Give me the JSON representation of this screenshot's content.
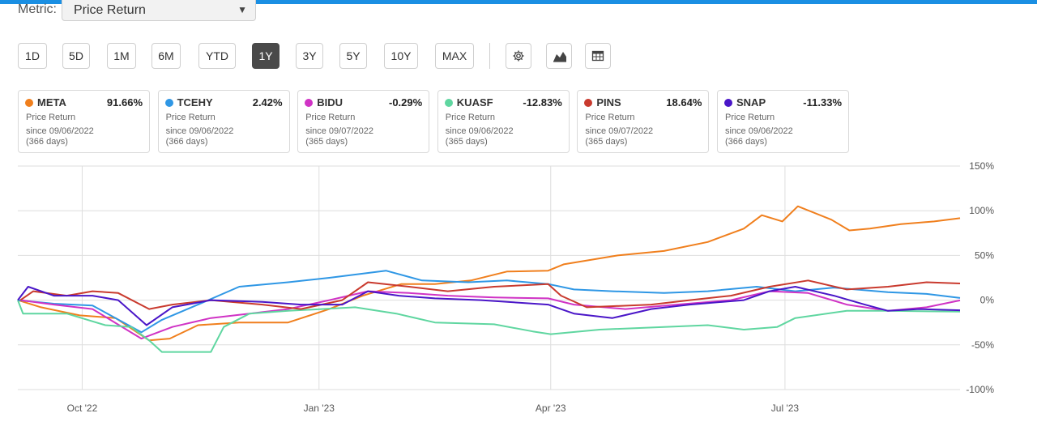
{
  "header": {
    "metric_label": "Metric:",
    "metric_value": "Price Return",
    "caret": "▼"
  },
  "ranges": [
    {
      "label": "1D",
      "active": false
    },
    {
      "label": "5D",
      "active": false
    },
    {
      "label": "1M",
      "active": false
    },
    {
      "label": "6M",
      "active": false
    },
    {
      "label": "YTD",
      "active": false
    },
    {
      "label": "1Y",
      "active": true
    },
    {
      "label": "3Y",
      "active": false
    },
    {
      "label": "5Y",
      "active": false
    },
    {
      "label": "10Y",
      "active": false
    },
    {
      "label": "MAX",
      "active": false
    }
  ],
  "tools": [
    "gear-icon",
    "chart-type-icon",
    "table-icon"
  ],
  "cards": [
    {
      "ticker": "META",
      "pct": "91.66%",
      "metric": "Price Return",
      "since": "since 09/06/2022",
      "days": "(366 days)",
      "color": "#f07f1d"
    },
    {
      "ticker": "TCEHY",
      "pct": "2.42%",
      "metric": "Price Return",
      "since": "since 09/06/2022",
      "days": "(366 days)",
      "color": "#2f97e5"
    },
    {
      "ticker": "BIDU",
      "pct": "-0.29%",
      "metric": "Price Return",
      "since": "since 09/07/2022",
      "days": "(365 days)",
      "color": "#d033c5"
    },
    {
      "ticker": "KUASF",
      "pct": "-12.83%",
      "metric": "Price Return",
      "since": "since 09/06/2022",
      "days": "(365 days)",
      "color": "#5fd6a0"
    },
    {
      "ticker": "PINS",
      "pct": "18.64%",
      "metric": "Price Return",
      "since": "since 09/07/2022",
      "days": "(365 days)",
      "color": "#c93a2e"
    },
    {
      "ticker": "SNAP",
      "pct": "-11.33%",
      "metric": "Price Return",
      "since": "since 09/06/2022",
      "days": "(366 days)",
      "color": "#4a16c8"
    }
  ],
  "chart_data": {
    "type": "line",
    "title": "",
    "xlabel": "",
    "ylabel": "",
    "ylim": [
      -100,
      150
    ],
    "yticks": [
      150,
      100,
      50,
      0,
      -50,
      -100
    ],
    "ytick_labels": [
      "150%",
      "100%",
      "50%",
      "0%",
      "-50%",
      "-100%"
    ],
    "xtick_labels": [
      "Oct '22",
      "Jan '23",
      "Apr '23",
      "Jul '23"
    ],
    "xtick_dates": [
      "2022-10-01",
      "2023-01-01",
      "2023-04-01",
      "2023-07-01"
    ],
    "x_start": "2022-09-06",
    "x_end": "2023-09-07",
    "grid": true,
    "series": [
      {
        "name": "META",
        "color": "#f07f1d",
        "points": [
          [
            "2022-09-06",
            0
          ],
          [
            "2022-09-15",
            -8
          ],
          [
            "2022-09-30",
            -17
          ],
          [
            "2022-10-14",
            -20
          ],
          [
            "2022-10-27",
            -45
          ],
          [
            "2022-11-04",
            -43
          ],
          [
            "2022-11-15",
            -28
          ],
          [
            "2022-12-01",
            -25
          ],
          [
            "2022-12-20",
            -25
          ],
          [
            "2023-01-05",
            -10
          ],
          [
            "2023-01-18",
            5
          ],
          [
            "2023-02-02",
            18
          ],
          [
            "2023-02-15",
            18
          ],
          [
            "2023-03-01",
            22
          ],
          [
            "2023-03-15",
            32
          ],
          [
            "2023-03-31",
            33
          ],
          [
            "2023-04-06",
            40
          ],
          [
            "2023-04-27",
            50
          ],
          [
            "2023-05-15",
            55
          ],
          [
            "2023-06-01",
            65
          ],
          [
            "2023-06-15",
            80
          ],
          [
            "2023-06-22",
            95
          ],
          [
            "2023-06-30",
            88
          ],
          [
            "2023-07-06",
            105
          ],
          [
            "2023-07-19",
            90
          ],
          [
            "2023-07-26",
            78
          ],
          [
            "2023-08-03",
            80
          ],
          [
            "2023-08-15",
            85
          ],
          [
            "2023-08-28",
            88
          ],
          [
            "2023-09-07",
            91.66
          ]
        ]
      },
      {
        "name": "TCEHY",
        "color": "#2f97e5",
        "points": [
          [
            "2022-09-06",
            0
          ],
          [
            "2022-09-20",
            -4
          ],
          [
            "2022-10-05",
            -6
          ],
          [
            "2022-10-24",
            -36
          ],
          [
            "2022-11-01",
            -22
          ],
          [
            "2022-11-15",
            -5
          ],
          [
            "2022-12-01",
            15
          ],
          [
            "2022-12-20",
            20
          ],
          [
            "2023-01-05",
            25
          ],
          [
            "2023-01-27",
            33
          ],
          [
            "2023-02-10",
            22
          ],
          [
            "2023-02-28",
            20
          ],
          [
            "2023-03-15",
            22
          ],
          [
            "2023-03-31",
            18
          ],
          [
            "2023-04-10",
            12
          ],
          [
            "2023-04-25",
            10
          ],
          [
            "2023-05-15",
            8
          ],
          [
            "2023-06-01",
            10
          ],
          [
            "2023-06-20",
            15
          ],
          [
            "2023-07-05",
            10
          ],
          [
            "2023-07-20",
            14
          ],
          [
            "2023-08-10",
            9
          ],
          [
            "2023-08-25",
            7
          ],
          [
            "2023-09-07",
            2.42
          ]
        ]
      },
      {
        "name": "BIDU",
        "color": "#d033c5",
        "points": [
          [
            "2022-09-07",
            0
          ],
          [
            "2022-09-20",
            -5
          ],
          [
            "2022-10-05",
            -10
          ],
          [
            "2022-10-24",
            -43
          ],
          [
            "2022-11-05",
            -30
          ],
          [
            "2022-11-20",
            -20
          ],
          [
            "2022-12-05",
            -15
          ],
          [
            "2022-12-20",
            -10
          ],
          [
            "2023-01-05",
            0
          ],
          [
            "2023-01-20",
            10
          ],
          [
            "2023-02-05",
            8
          ],
          [
            "2023-02-20",
            5
          ],
          [
            "2023-03-10",
            3
          ],
          [
            "2023-03-31",
            2
          ],
          [
            "2023-04-10",
            -5
          ],
          [
            "2023-04-30",
            -10
          ],
          [
            "2023-05-20",
            -5
          ],
          [
            "2023-06-10",
            0
          ],
          [
            "2023-06-25",
            10
          ],
          [
            "2023-07-10",
            8
          ],
          [
            "2023-07-25",
            -5
          ],
          [
            "2023-08-10",
            -12
          ],
          [
            "2023-08-25",
            -8
          ],
          [
            "2023-09-07",
            -0.29
          ]
        ]
      },
      {
        "name": "KUASF",
        "color": "#5fd6a0",
        "points": [
          [
            "2022-09-06",
            0
          ],
          [
            "2022-09-08",
            -15
          ],
          [
            "2022-09-25",
            -15
          ],
          [
            "2022-10-10",
            -28
          ],
          [
            "2022-10-20",
            -30
          ],
          [
            "2022-10-27",
            -45
          ],
          [
            "2022-11-01",
            -58
          ],
          [
            "2022-11-20",
            -58
          ],
          [
            "2022-11-25",
            -30
          ],
          [
            "2022-12-05",
            -15
          ],
          [
            "2022-12-20",
            -12
          ],
          [
            "2023-01-15",
            -8
          ],
          [
            "2023-01-31",
            -15
          ],
          [
            "2023-02-15",
            -25
          ],
          [
            "2023-03-10",
            -27
          ],
          [
            "2023-03-25",
            -35
          ],
          [
            "2023-04-01",
            -38
          ],
          [
            "2023-04-20",
            -33
          ],
          [
            "2023-05-15",
            -30
          ],
          [
            "2023-06-01",
            -28
          ],
          [
            "2023-06-15",
            -33
          ],
          [
            "2023-06-28",
            -30
          ],
          [
            "2023-07-05",
            -20
          ],
          [
            "2023-07-25",
            -12
          ],
          [
            "2023-08-10",
            -12
          ],
          [
            "2023-09-07",
            -12.83
          ]
        ]
      },
      {
        "name": "PINS",
        "color": "#c93a2e",
        "points": [
          [
            "2022-09-07",
            0
          ],
          [
            "2022-09-12",
            10
          ],
          [
            "2022-09-25",
            5
          ],
          [
            "2022-10-05",
            10
          ],
          [
            "2022-10-15",
            8
          ],
          [
            "2022-10-27",
            -10
          ],
          [
            "2022-11-05",
            -5
          ],
          [
            "2022-11-20",
            0
          ],
          [
            "2022-12-10",
            -5
          ],
          [
            "2022-12-25",
            -10
          ],
          [
            "2023-01-10",
            0
          ],
          [
            "2023-01-20",
            20
          ],
          [
            "2023-02-05",
            15
          ],
          [
            "2023-02-20",
            10
          ],
          [
            "2023-03-10",
            15
          ],
          [
            "2023-03-31",
            18
          ],
          [
            "2023-04-05",
            5
          ],
          [
            "2023-04-15",
            -8
          ],
          [
            "2023-05-10",
            -5
          ],
          [
            "2023-05-25",
            0
          ],
          [
            "2023-06-10",
            5
          ],
          [
            "2023-06-25",
            15
          ],
          [
            "2023-07-10",
            22
          ],
          [
            "2023-07-25",
            12
          ],
          [
            "2023-08-10",
            15
          ],
          [
            "2023-08-25",
            20
          ],
          [
            "2023-09-07",
            18.64
          ]
        ]
      },
      {
        "name": "SNAP",
        "color": "#4a16c8",
        "points": [
          [
            "2022-09-06",
            0
          ],
          [
            "2022-09-10",
            15
          ],
          [
            "2022-09-20",
            5
          ],
          [
            "2022-10-05",
            5
          ],
          [
            "2022-10-15",
            0
          ],
          [
            "2022-10-26",
            -28
          ],
          [
            "2022-11-05",
            -8
          ],
          [
            "2022-11-20",
            0
          ],
          [
            "2022-12-10",
            -2
          ],
          [
            "2022-12-25",
            -5
          ],
          [
            "2023-01-10",
            -5
          ],
          [
            "2023-01-20",
            10
          ],
          [
            "2023-02-01",
            5
          ],
          [
            "2023-02-15",
            2
          ],
          [
            "2023-03-05",
            0
          ],
          [
            "2023-03-31",
            -5
          ],
          [
            "2023-04-10",
            -15
          ],
          [
            "2023-04-25",
            -20
          ],
          [
            "2023-05-10",
            -10
          ],
          [
            "2023-05-25",
            -5
          ],
          [
            "2023-06-15",
            0
          ],
          [
            "2023-06-25",
            10
          ],
          [
            "2023-07-05",
            15
          ],
          [
            "2023-07-20",
            5
          ],
          [
            "2023-08-01",
            -5
          ],
          [
            "2023-08-10",
            -12
          ],
          [
            "2023-08-22",
            -10
          ],
          [
            "2023-09-07",
            -11.33
          ]
        ]
      }
    ]
  }
}
